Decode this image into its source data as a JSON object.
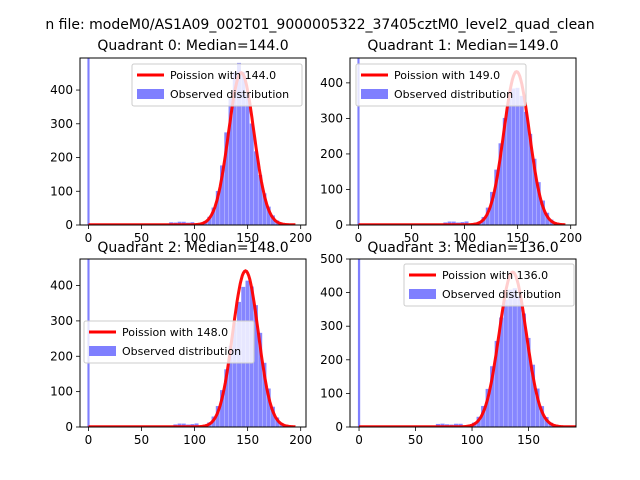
{
  "figure": {
    "suptitle": "n file: modeM0/AS1A09_002T01_9000005322_37405cztM0_level2_quad_clean"
  },
  "colors": {
    "poisson_line": "#ff0000",
    "observed_hist": "#7f7fff",
    "axes_edge": "#000000",
    "legend_edge": "#cccccc"
  },
  "chart_data": [
    {
      "type": "bar",
      "title": "Quadrant 0: Median=144.0",
      "xlabel": "",
      "ylabel": "",
      "xlim": [
        -8,
        205
      ],
      "ylim": [
        0,
        495
      ],
      "xticks": [
        0,
        50,
        100,
        150,
        200
      ],
      "yticks": [
        0,
        100,
        200,
        300,
        400
      ],
      "legend_loc": "upper right",
      "spike": {
        "x": 0,
        "count": 495
      },
      "median": 144,
      "peak": 460,
      "sigma": 12,
      "series": [
        {
          "name": "Poission with 144.0",
          "kind": "line"
        },
        {
          "name": "Observed distribution",
          "kind": "hist"
        }
      ]
    },
    {
      "type": "bar",
      "title": "Quadrant 1: Median=149.0",
      "xlabel": "",
      "ylabel": "",
      "xlim": [
        -8,
        205
      ],
      "ylim": [
        0,
        470
      ],
      "xticks": [
        0,
        50,
        100,
        150,
        200
      ],
      "yticks": [
        0,
        100,
        200,
        300,
        400
      ],
      "legend_loc": "upper left",
      "spike": {
        "x": 0,
        "count": 470
      },
      "median": 149,
      "peak": 440,
      "sigma": 12,
      "series": [
        {
          "name": "Poission with 149.0",
          "kind": "line"
        },
        {
          "name": "Observed distribution",
          "kind": "hist"
        }
      ]
    },
    {
      "type": "bar",
      "title": "Quadrant 2: Median=148.0",
      "xlabel": "",
      "ylabel": "",
      "xlim": [
        -8,
        205
      ],
      "ylim": [
        0,
        475
      ],
      "xticks": [
        0,
        50,
        100,
        150,
        200
      ],
      "yticks": [
        0,
        100,
        200,
        300,
        400
      ],
      "legend_loc": "center left",
      "spike": {
        "x": 0,
        "count": 475
      },
      "median": 148,
      "peak": 450,
      "sigma": 12,
      "series": [
        {
          "name": "Poission with 148.0",
          "kind": "line"
        },
        {
          "name": "Observed distribution",
          "kind": "hist"
        }
      ]
    },
    {
      "type": "bar",
      "title": "Quadrant 3: Median=136.0",
      "xlabel": "",
      "ylabel": "",
      "xlim": [
        -8,
        192
      ],
      "ylim": [
        0,
        500
      ],
      "xticks": [
        0,
        50,
        100,
        150
      ],
      "yticks": [
        0,
        100,
        200,
        300,
        400,
        500
      ],
      "legend_loc": "upper right",
      "spike": {
        "x": 0,
        "count": 500
      },
      "median": 136,
      "peak": 470,
      "sigma": 12,
      "series": [
        {
          "name": "Poission with 136.0",
          "kind": "line"
        },
        {
          "name": "Observed distribution",
          "kind": "hist"
        }
      ]
    }
  ]
}
